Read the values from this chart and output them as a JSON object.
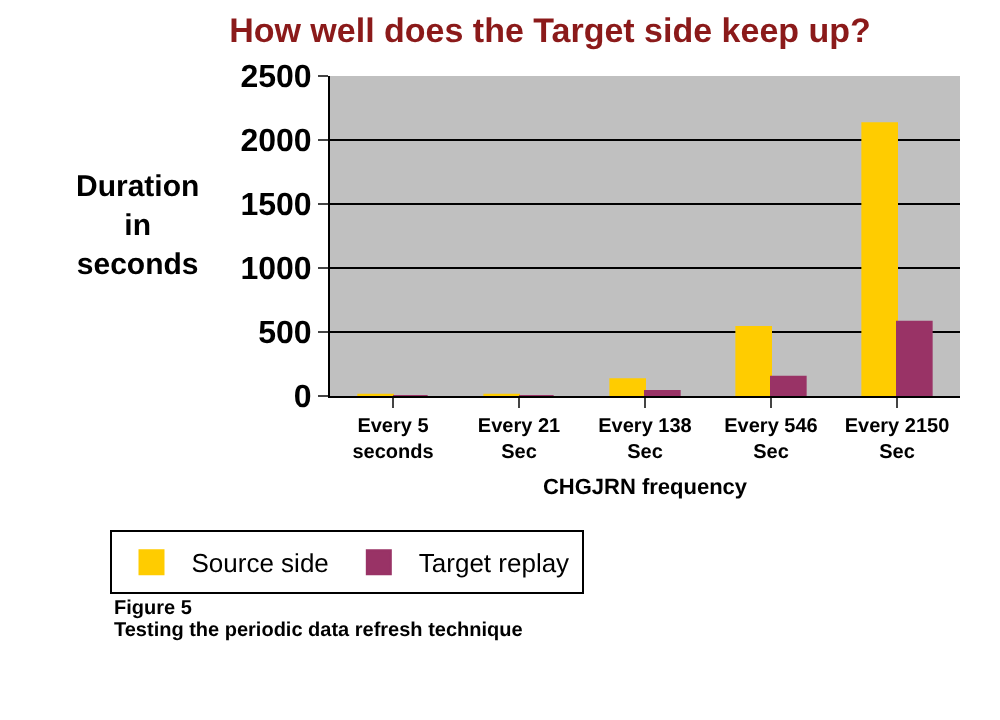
{
  "chart_data": {
    "type": "bar",
    "title": "How well does the Target side keep up?",
    "ylabel": "Duration in seconds",
    "xlabel": "CHGJRN frequency",
    "categories": [
      "Every 5 seconds",
      "Every 21 Sec",
      "Every 138 Sec",
      "Every 546 Sec",
      "Every 2150 Sec"
    ],
    "series": [
      {
        "name": "Source side",
        "color": "#ffcc00",
        "values": [
          10,
          10,
          130,
          540,
          2130
        ]
      },
      {
        "name": "Target replay",
        "color": "#993366",
        "values": [
          0,
          0,
          40,
          150,
          580
        ]
      }
    ],
    "ylim": [
      0,
      2500
    ],
    "yticks": [
      0,
      500,
      1000,
      1500,
      2000,
      2500
    ],
    "grid": "y",
    "legend": "bottom left",
    "annotations": [
      "Figure 5",
      "Testing the periodic data refresh technique"
    ]
  }
}
